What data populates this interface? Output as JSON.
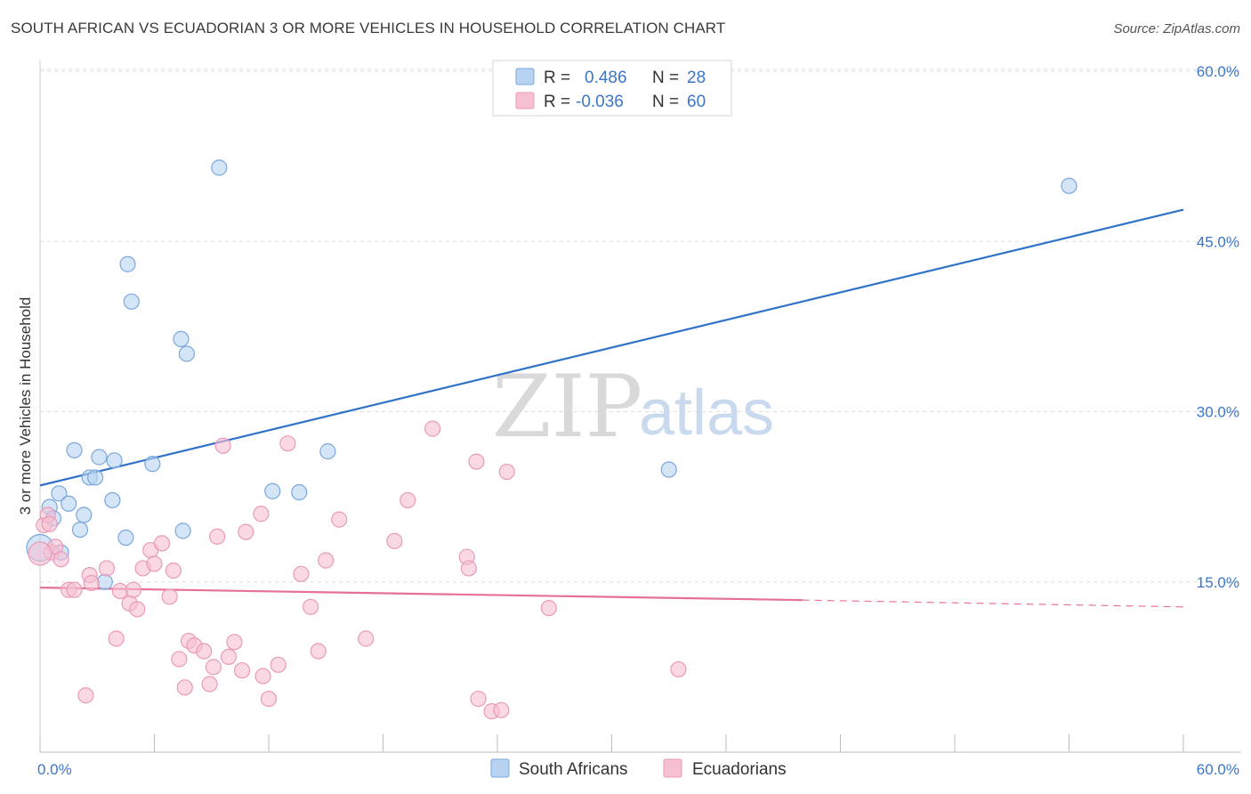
{
  "title": "SOUTH AFRICAN VS ECUADORIAN 3 OR MORE VEHICLES IN HOUSEHOLD CORRELATION CHART",
  "source": "Source: ZipAtlas.com",
  "watermark": {
    "zip": "ZIP",
    "atlas": "atlas"
  },
  "colors": {
    "blue_fill": "#b8d3f1",
    "blue_stroke": "#7aa7dc",
    "blue_line": "#2f72c8",
    "pink_fill": "#f7c0d2",
    "pink_stroke": "#e99ab6",
    "pink_line": "#e5719a",
    "grid": "#dddddd",
    "axis_text": "#3b76c8"
  },
  "legend": {
    "rows": [
      {
        "r_label": "R =",
        "r_value": "0.486",
        "n_label": "N =",
        "n_value": "28"
      },
      {
        "r_label": "R =",
        "r_value": "-0.036",
        "n_label": "N =",
        "n_value": "60"
      }
    ]
  },
  "bottom_legend": [
    "South Africans",
    "Ecuadorians"
  ],
  "chart_data": {
    "type": "scatter",
    "ylabel": "3 or more Vehicles in Household",
    "xlabel": "",
    "xlim": [
      0,
      60
    ],
    "ylim": [
      0,
      60
    ],
    "x_tick_labels": [
      "0.0%",
      "60.0%"
    ],
    "y_tick_labels": [
      "15.0%",
      "30.0%",
      "45.0%",
      "60.0%"
    ],
    "y_ticks": [
      15,
      30,
      45,
      60
    ],
    "grid": true,
    "series": [
      {
        "name": "South Africans",
        "color": "#b8d3f1",
        "points": [
          [
            0.0,
            18.0
          ],
          [
            0.5,
            21.6
          ],
          [
            0.7,
            20.6
          ],
          [
            1.0,
            22.8
          ],
          [
            1.1,
            17.6
          ],
          [
            1.5,
            21.9
          ],
          [
            1.8,
            26.6
          ],
          [
            2.1,
            19.6
          ],
          [
            2.3,
            20.9
          ],
          [
            2.6,
            24.2
          ],
          [
            2.9,
            24.2
          ],
          [
            3.1,
            26.0
          ],
          [
            3.4,
            15.0
          ],
          [
            3.8,
            22.2
          ],
          [
            3.9,
            25.7
          ],
          [
            4.5,
            18.9
          ],
          [
            4.6,
            43.0
          ],
          [
            4.8,
            39.7
          ],
          [
            5.9,
            25.4
          ],
          [
            7.4,
            36.4
          ],
          [
            7.5,
            19.5
          ],
          [
            7.7,
            35.1
          ],
          [
            9.4,
            51.5
          ],
          [
            12.2,
            23.0
          ],
          [
            13.6,
            22.9
          ],
          [
            15.1,
            26.5
          ],
          [
            33.0,
            24.9
          ],
          [
            54.0,
            49.9
          ]
        ]
      },
      {
        "name": "Ecuadorians",
        "color": "#f7c0d2",
        "points": [
          [
            0.2,
            20.0
          ],
          [
            0.4,
            20.9
          ],
          [
            0.5,
            20.1
          ],
          [
            0.6,
            17.6
          ],
          [
            0.8,
            18.1
          ],
          [
            1.1,
            17.0
          ],
          [
            1.5,
            14.3
          ],
          [
            1.8,
            14.3
          ],
          [
            2.4,
            5.0
          ],
          [
            2.6,
            15.6
          ],
          [
            2.7,
            14.9
          ],
          [
            3.5,
            16.2
          ],
          [
            4.0,
            10.0
          ],
          [
            4.2,
            14.2
          ],
          [
            4.7,
            13.1
          ],
          [
            4.9,
            14.3
          ],
          [
            5.1,
            12.6
          ],
          [
            5.4,
            16.2
          ],
          [
            5.8,
            17.8
          ],
          [
            6.0,
            16.6
          ],
          [
            6.4,
            18.4
          ],
          [
            6.8,
            13.7
          ],
          [
            7.0,
            16.0
          ],
          [
            7.3,
            8.2
          ],
          [
            7.6,
            5.7
          ],
          [
            7.8,
            9.8
          ],
          [
            8.1,
            9.4
          ],
          [
            8.6,
            8.9
          ],
          [
            8.9,
            6.0
          ],
          [
            9.1,
            7.5
          ],
          [
            9.3,
            19.0
          ],
          [
            9.6,
            27.0
          ],
          [
            9.9,
            8.4
          ],
          [
            10.2,
            9.7
          ],
          [
            10.6,
            7.2
          ],
          [
            10.8,
            19.4
          ],
          [
            11.6,
            21.0
          ],
          [
            11.7,
            6.7
          ],
          [
            12.0,
            4.7
          ],
          [
            12.5,
            7.7
          ],
          [
            13.0,
            27.2
          ],
          [
            13.7,
            15.7
          ],
          [
            14.2,
            12.8
          ],
          [
            14.6,
            8.9
          ],
          [
            15.0,
            16.9
          ],
          [
            15.7,
            20.5
          ],
          [
            17.1,
            10.0
          ],
          [
            18.6,
            18.6
          ],
          [
            19.3,
            22.2
          ],
          [
            20.6,
            28.5
          ],
          [
            22.4,
            17.2
          ],
          [
            22.5,
            16.2
          ],
          [
            22.9,
            25.6
          ],
          [
            23.0,
            4.7
          ],
          [
            23.7,
            3.6
          ],
          [
            24.2,
            3.7
          ],
          [
            24.5,
            24.7
          ],
          [
            26.7,
            12.7
          ],
          [
            33.5,
            7.3
          ],
          [
            0.0,
            17.5
          ]
        ]
      }
    ],
    "trendlines": [
      {
        "series": "South Africans",
        "x": [
          0,
          60
        ],
        "y": [
          23.5,
          47.8
        ],
        "style": "solid"
      },
      {
        "series": "Ecuadorians",
        "x": [
          0,
          40
        ],
        "y": [
          14.5,
          13.4
        ],
        "style": "solid"
      },
      {
        "series": "Ecuadorians",
        "x": [
          40,
          60
        ],
        "y": [
          13.4,
          12.8
        ],
        "style": "dashed"
      }
    ]
  }
}
